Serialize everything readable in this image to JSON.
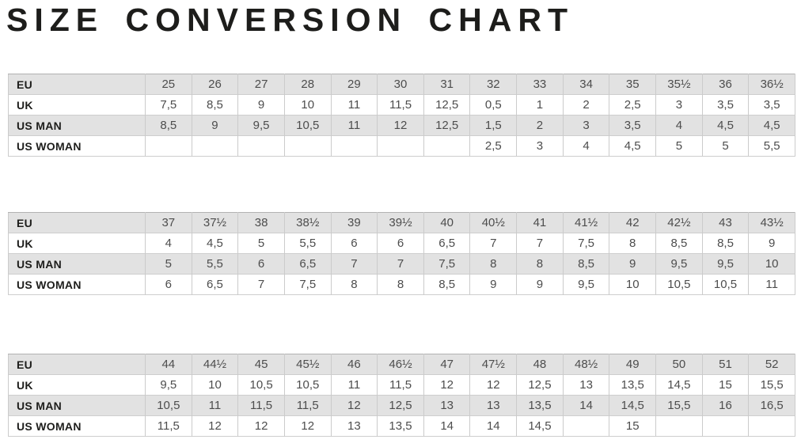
{
  "title": "SIZE CONVERSION CHART",
  "colors": {
    "shaded_row_bg": "#e2e2e2",
    "plain_row_bg": "#ffffff",
    "cell_border": "#cbcbcb",
    "outer_border": "#b2b2b2",
    "label_text": "#1d1d1b",
    "value_text": "#4d4d4d"
  },
  "row_labels": [
    "EU",
    "UK",
    "US MAN",
    "US WOMAN"
  ],
  "chart_data": [
    {
      "type": "table",
      "rows": [
        {
          "label": "EU",
          "values": [
            "25",
            "26",
            "27",
            "28",
            "29",
            "30",
            "31",
            "32",
            "33",
            "34",
            "35",
            "35½",
            "36",
            "36½"
          ]
        },
        {
          "label": "UK",
          "values": [
            "7,5",
            "8,5",
            "9",
            "10",
            "11",
            "11,5",
            "12,5",
            "0,5",
            "1",
            "2",
            "2,5",
            "3",
            "3,5",
            "3,5"
          ]
        },
        {
          "label": "US MAN",
          "values": [
            "8,5",
            "9",
            "9,5",
            "10,5",
            "11",
            "12",
            "12,5",
            "1,5",
            "2",
            "3",
            "3,5",
            "4",
            "4,5",
            "4,5"
          ]
        },
        {
          "label": "US WOMAN",
          "values": [
            "",
            "",
            "",
            "",
            "",
            "",
            "",
            "2,5",
            "3",
            "4",
            "4,5",
            "5",
            "5",
            "5,5"
          ]
        }
      ]
    },
    {
      "type": "table",
      "rows": [
        {
          "label": "EU",
          "values": [
            "37",
            "37½",
            "38",
            "38½",
            "39",
            "39½",
            "40",
            "40½",
            "41",
            "41½",
            "42",
            "42½",
            "43",
            "43½"
          ]
        },
        {
          "label": "UK",
          "values": [
            "4",
            "4,5",
            "5",
            "5,5",
            "6",
            "6",
            "6,5",
            "7",
            "7",
            "7,5",
            "8",
            "8,5",
            "8,5",
            "9"
          ]
        },
        {
          "label": "US MAN",
          "values": [
            "5",
            "5,5",
            "6",
            "6,5",
            "7",
            "7",
            "7,5",
            "8",
            "8",
            "8,5",
            "9",
            "9,5",
            "9,5",
            "10"
          ]
        },
        {
          "label": "US WOMAN",
          "values": [
            "6",
            "6,5",
            "7",
            "7,5",
            "8",
            "8",
            "8,5",
            "9",
            "9",
            "9,5",
            "10",
            "10,5",
            "10,5",
            "11"
          ]
        }
      ]
    },
    {
      "type": "table",
      "rows": [
        {
          "label": "EU",
          "values": [
            "44",
            "44½",
            "45",
            "45½",
            "46",
            "46½",
            "47",
            "47½",
            "48",
            "48½",
            "49",
            "50",
            "51",
            "52"
          ]
        },
        {
          "label": "UK",
          "values": [
            "9,5",
            "10",
            "10,5",
            "10,5",
            "11",
            "11,5",
            "12",
            "12",
            "12,5",
            "13",
            "13,5",
            "14,5",
            "15",
            "15,5"
          ]
        },
        {
          "label": "US MAN",
          "values": [
            "10,5",
            "11",
            "11,5",
            "11,5",
            "12",
            "12,5",
            "13",
            "13",
            "13,5",
            "14",
            "14,5",
            "15,5",
            "16",
            "16,5"
          ]
        },
        {
          "label": "US WOMAN",
          "values": [
            "11,5",
            "12",
            "12",
            "12",
            "13",
            "13,5",
            "14",
            "14",
            "14,5",
            "",
            "15",
            "",
            "",
            ""
          ]
        }
      ]
    }
  ]
}
